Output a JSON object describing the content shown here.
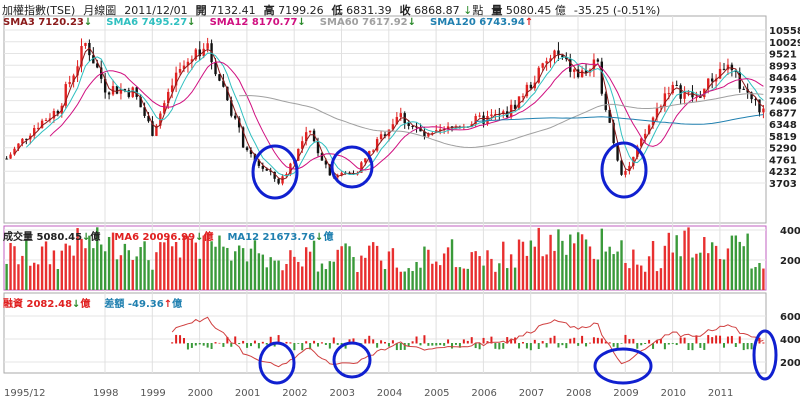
{
  "header": {
    "title": "加權指數(TSE)",
    "period": "月線圖",
    "date": "2011/12/01",
    "open_label": "開",
    "open": "7132.41",
    "high_label": "高",
    "high": "7199.26",
    "low_label": "低",
    "low": "6831.39",
    "close_label": "收",
    "close": "6868.87",
    "close_arrow": "↓",
    "unit": "點",
    "vol_label": "量",
    "volume": "5080.45",
    "vol_unit": "億",
    "change": "-35.25 (-0.51%)"
  },
  "price_legend": [
    {
      "label": "SMA3 7120.23",
      "arrow": "↓",
      "color": "#8b1a1a"
    },
    {
      "label": "SMA6 7495.27",
      "arrow": "↓",
      "color": "#30c0c0"
    },
    {
      "label": "SMA12 8170.77",
      "arrow": "↓",
      "color": "#d01080"
    },
    {
      "label": "SMA60 7617.92",
      "arrow": "↓",
      "color": "#a0a0a0"
    },
    {
      "label": "SMA120 6743.94",
      "arrow": "↑",
      "color": "#2080b0"
    }
  ],
  "volume_legend": [
    {
      "label": "成交量 5080.45",
      "arrow": "↓",
      "unit": "億",
      "color": "#222"
    },
    {
      "label": "MA6 20096.99",
      "arrow": "↓",
      "unit": "億",
      "color": "#e02020"
    },
    {
      "label": "MA12 21673.76",
      "arrow": "↓",
      "unit": "億",
      "color": "#2080b0"
    }
  ],
  "margin_legend": [
    {
      "label": "融資 2082.48",
      "arrow": "↓",
      "unit": "億",
      "color": "#e02020"
    },
    {
      "label": "差額 -49.36",
      "arrow": "↑",
      "unit": "億",
      "color": "#2080b0"
    }
  ],
  "chart_data": {
    "type": "candlestick",
    "price_axis": [
      "10558",
      "10029",
      "9521",
      "8993",
      "8464",
      "7935",
      "7406",
      "6877",
      "6348",
      "5819",
      "5290",
      "4761",
      "4232",
      "3703"
    ],
    "volume_axis": [
      "4000",
      "2000"
    ],
    "margin_axis": [
      "6000",
      "4000",
      "2000"
    ],
    "x_labels": [
      "1995/12",
      "1998",
      "1999",
      "2000",
      "2001",
      "2002",
      "2003",
      "2004",
      "2005",
      "2006",
      "2007",
      "2008",
      "2009",
      "2010",
      "2011"
    ],
    "price_keypoints": [
      [
        1995.92,
        4800
      ],
      [
        1996.5,
        6200
      ],
      [
        1997.0,
        7000
      ],
      [
        1997.6,
        10000
      ],
      [
        1998.0,
        8000
      ],
      [
        1998.6,
        7800
      ],
      [
        1999.0,
        6000
      ],
      [
        1999.5,
        8500
      ],
      [
        2000.1,
        10000
      ],
      [
        2000.5,
        8000
      ],
      [
        2001.0,
        5000
      ],
      [
        2001.7,
        3700
      ],
      [
        2002.3,
        6000
      ],
      [
        2002.8,
        4000
      ],
      [
        2003.3,
        4200
      ],
      [
        2004.2,
        6800
      ],
      [
        2004.8,
        5700
      ],
      [
        2005.5,
        6300
      ],
      [
        2006.5,
        6800
      ],
      [
        2007.5,
        9500
      ],
      [
        2008.0,
        8500
      ],
      [
        2008.4,
        9000
      ],
      [
        2008.9,
        4200
      ],
      [
        2009.1,
        4500
      ],
      [
        2009.9,
        8000
      ],
      [
        2010.5,
        7500
      ],
      [
        2011.1,
        9000
      ],
      [
        2011.9,
        6869
      ]
    ],
    "annotations": "blue hand-drawn circles around 2001-2002, 2003 and 2008-2009 lows and late 2011"
  }
}
